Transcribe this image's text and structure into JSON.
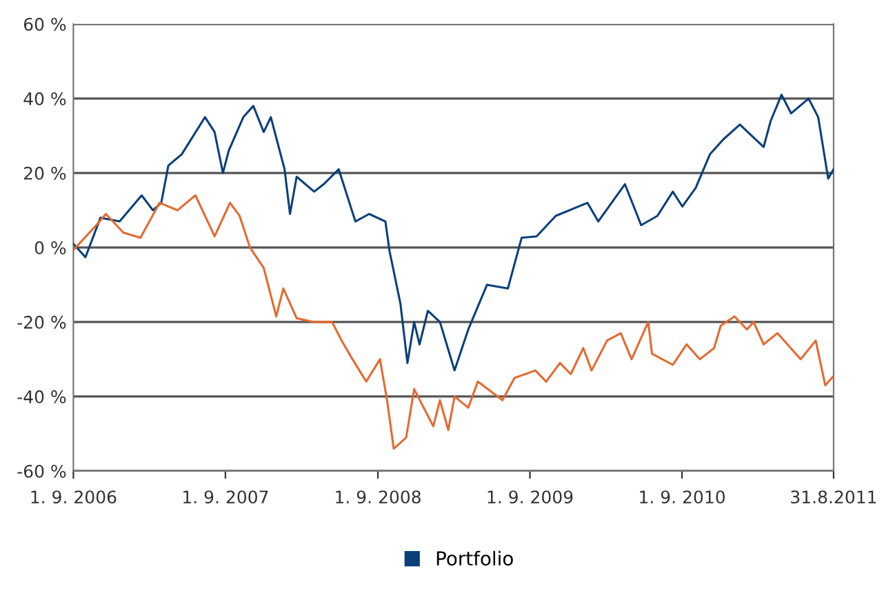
{
  "chart_data": {
    "type": "line",
    "xlim": [
      "2006-09-01",
      "2011-08-31"
    ],
    "xticks": [
      {
        "value": "2006-09-01",
        "label": "1. 9. 2006"
      },
      {
        "value": "2007-09-01",
        "label": "1. 9. 2007"
      },
      {
        "value": "2008-09-01",
        "label": "1. 9. 2008"
      },
      {
        "value": "2009-09-01",
        "label": "1. 9. 2009"
      },
      {
        "value": "2010-09-01",
        "label": "1. 9. 2010"
      },
      {
        "value": "2011-08-31",
        "label": "31.8.2011"
      }
    ],
    "ylim": [
      -60,
      60
    ],
    "yticks": [
      {
        "value": -60,
        "label": "-60 %"
      },
      {
        "value": -40,
        "label": "-40 %"
      },
      {
        "value": -20,
        "label": "-20 %"
      },
      {
        "value": 0,
        "label": "0 %"
      },
      {
        "value": 20,
        "label": "20 %"
      },
      {
        "value": 40,
        "label": "40 %"
      },
      {
        "value": 60,
        "label": "60 %"
      }
    ],
    "grid": "y",
    "legend": "bottom",
    "marker": "none",
    "line_style": "solid",
    "series": [
      {
        "name": "Portfolio",
        "color": "#0b3f7a",
        "x": [
          "2006-09-01",
          "2006-09-30",
          "2006-11-05",
          "2006-12-21",
          "2007-02-12",
          "2007-03-11",
          "2007-03-31",
          "2007-04-17",
          "2007-05-19",
          "2007-07-14",
          "2007-08-06",
          "2007-08-26",
          "2007-09-09",
          "2007-10-14",
          "2007-11-07",
          "2007-12-02",
          "2007-12-19",
          "2008-01-21",
          "2008-02-03",
          "2008-02-19",
          "2008-04-01",
          "2008-04-24",
          "2008-05-30",
          "2008-07-09",
          "2008-08-11",
          "2008-09-19",
          "2008-09-29",
          "2008-10-25",
          "2008-11-11",
          "2008-11-27",
          "2008-12-10",
          "2008-12-30",
          "2009-01-28",
          "2009-03-04",
          "2009-04-06",
          "2009-05-21",
          "2009-07-10",
          "2009-08-12",
          "2009-09-17",
          "2009-11-02",
          "2010-01-17",
          "2010-02-12",
          "2010-04-17",
          "2010-05-26",
          "2010-07-04",
          "2010-08-10",
          "2010-09-02",
          "2010-10-04",
          "2010-11-07",
          "2010-12-09",
          "2011-01-18",
          "2011-03-16",
          "2011-04-02",
          "2011-04-28",
          "2011-05-21",
          "2011-07-02",
          "2011-07-25",
          "2011-08-18",
          "2011-08-31"
        ],
        "values": [
          1,
          -2.6,
          8,
          7,
          14,
          10,
          12,
          22,
          25,
          35,
          31,
          20,
          26,
          35,
          38,
          31,
          35,
          21,
          9,
          19,
          15,
          17,
          21,
          7,
          9,
          7,
          -1,
          -15,
          -31,
          -20,
          -26,
          -17,
          -20,
          -33,
          -22,
          -10,
          -11,
          2.6,
          3,
          8.5,
          12,
          7,
          17,
          6,
          8.5,
          15,
          11,
          16,
          25,
          29,
          33,
          27,
          34,
          41,
          36,
          40,
          35,
          18.5,
          21
        ]
      },
      {
        "color": "#e5692f",
        "x": [
          "2006-09-01",
          "2006-10-26",
          "2006-11-18",
          "2006-12-30",
          "2007-02-09",
          "2007-03-27",
          "2007-05-09",
          "2007-06-21",
          "2007-08-06",
          "2007-09-12",
          "2007-10-05",
          "2007-10-30",
          "2007-12-02",
          "2008-01-01",
          "2008-01-18",
          "2008-02-19",
          "2008-04-01",
          "2008-05-14",
          "2008-06-06",
          "2008-07-02",
          "2008-08-04",
          "2008-09-06",
          "2008-09-23",
          "2008-10-09",
          "2008-11-08",
          "2008-11-27",
          "2009-01-12",
          "2009-01-28",
          "2009-02-17",
          "2009-03-04",
          "2009-04-06",
          "2009-04-29",
          "2009-06-27",
          "2009-07-26",
          "2009-09-14",
          "2009-10-10",
          "2009-11-12",
          "2009-12-08",
          "2010-01-07",
          "2010-01-27",
          "2010-03-05",
          "2010-04-07",
          "2010-05-03",
          "2010-06-12",
          "2010-06-21",
          "2010-08-10",
          "2010-09-12",
          "2010-10-14",
          "2010-11-17",
          "2010-12-03",
          "2011-01-05",
          "2011-02-04",
          "2011-02-20",
          "2011-03-16",
          "2011-04-18",
          "2011-06-13",
          "2011-07-19",
          "2011-08-11",
          "2011-08-31"
        ],
        "values": [
          -0.7,
          6,
          9,
          4,
          2.6,
          12,
          10,
          14,
          3,
          12,
          8.5,
          0,
          -5.5,
          -18.5,
          -11,
          -19,
          -20,
          -20,
          -25,
          -30,
          -36,
          -30,
          -41,
          -54,
          -51,
          -38,
          -48,
          -41,
          -49,
          -40,
          -43,
          -36,
          -41,
          -35,
          -33,
          -36,
          -31,
          -34,
          -27,
          -33,
          -25,
          -23,
          -30,
          -20,
          -28.5,
          -31.5,
          -26,
          -30,
          -27,
          -21,
          -18.5,
          -22,
          -20,
          -26,
          -23,
          -30,
          -25,
          -37,
          -34.5
        ]
      }
    ]
  }
}
